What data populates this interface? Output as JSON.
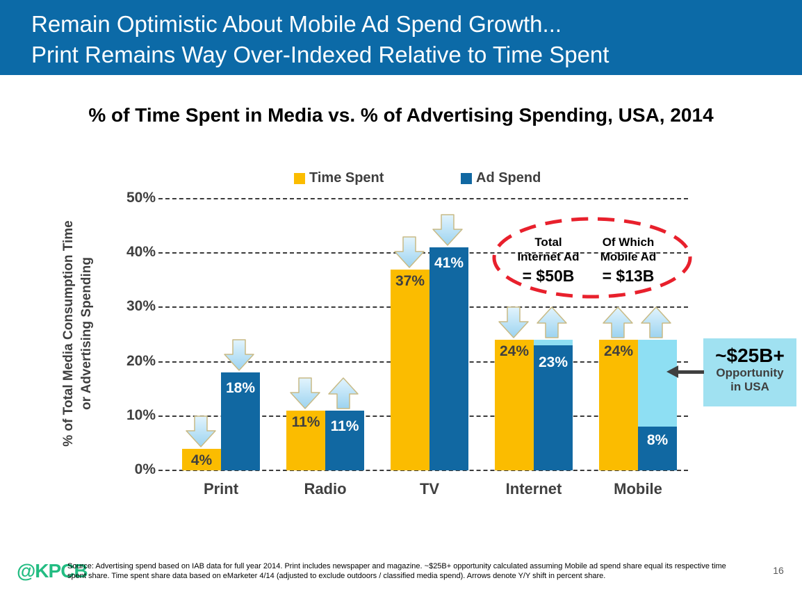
{
  "slide": {
    "header": {
      "line1": "Remain Optimistic About Mobile Ad Spend Growth...",
      "line2": "Print Remains Way Over-Indexed Relative to Time Spent"
    },
    "footer": {
      "logo": "@KPCB",
      "source_line1": "Source: Advertising spend based on IAB data for full year 2014. Print includes newspaper and magazine. ~$25B+ opportunity calculated assuming Mobile ad spend share equal its respective time",
      "source_line2": "spent share. Time spent share data based on eMarketer 4/14 (adjusted to exclude outdoors / classified media spend). Arrows denote Y/Y shift in percent share.",
      "page_number": "16"
    }
  },
  "colors": {
    "header_bg": "#0C6AA7",
    "bar_yellow": "#FBBC00",
    "bar_blue": "#1168A2",
    "light_blue": "#8EDFF3",
    "callout_bg": "#A0E1F1",
    "red_ellipse": "#E8202C",
    "dark_text": "#3F3F3F",
    "logo_green": "#23BC82",
    "arrow_fill_top": "#E2F4FD",
    "arrow_fill_bottom": "#9CD3F0",
    "arrow_stroke": "#C8BA85"
  },
  "chart_data": {
    "type": "bar",
    "title": "% of Time Spent in Media vs. % of Advertising Spending, USA, 2014",
    "categories": [
      "Print",
      "Radio",
      "TV",
      "Internet",
      "Mobile"
    ],
    "series": [
      {
        "name": "Time Spent",
        "color_key": "bar_yellow",
        "values": [
          4,
          11,
          37,
          24,
          24
        ]
      },
      {
        "name": "Ad Spend",
        "color_key": "bar_blue",
        "values": [
          18,
          11,
          41,
          23,
          8
        ]
      }
    ],
    "yoy_arrows": {
      "note": "Arrows denote Y/Y shift in percent share",
      "time_spent": [
        "down",
        "down",
        "down",
        "down",
        "up"
      ],
      "ad_spend": [
        "down",
        "up",
        "down",
        "up",
        "up"
      ]
    },
    "overlays": [
      {
        "category": "Internet",
        "series": "Ad Spend",
        "style": "cap",
        "to": 24
      },
      {
        "category": "Mobile",
        "series": "Ad Spend",
        "style": "extension",
        "to": 24
      }
    ],
    "ylabel_line1": "% of Total Media Consumption Time",
    "ylabel_line2": "or Advertising Spending",
    "yticks": [
      "0%",
      "10%",
      "20%",
      "30%",
      "40%",
      "50%"
    ],
    "ylim": [
      0,
      50
    ],
    "grid": "dashed horizontal gridlines",
    "legend_position": "top center",
    "annotations": {
      "ellipse_callout": {
        "style": "red dashed ellipse",
        "columns": [
          {
            "line1": "Total",
            "line2": "Internet Ad",
            "value": "= $50B"
          },
          {
            "line1": "Of Which",
            "line2": "Mobile Ad",
            "value": "= $13B"
          }
        ]
      },
      "opportunity_callout": {
        "headline": "~$25B+",
        "line2": "Opportunity",
        "line3": "in USA"
      }
    }
  }
}
